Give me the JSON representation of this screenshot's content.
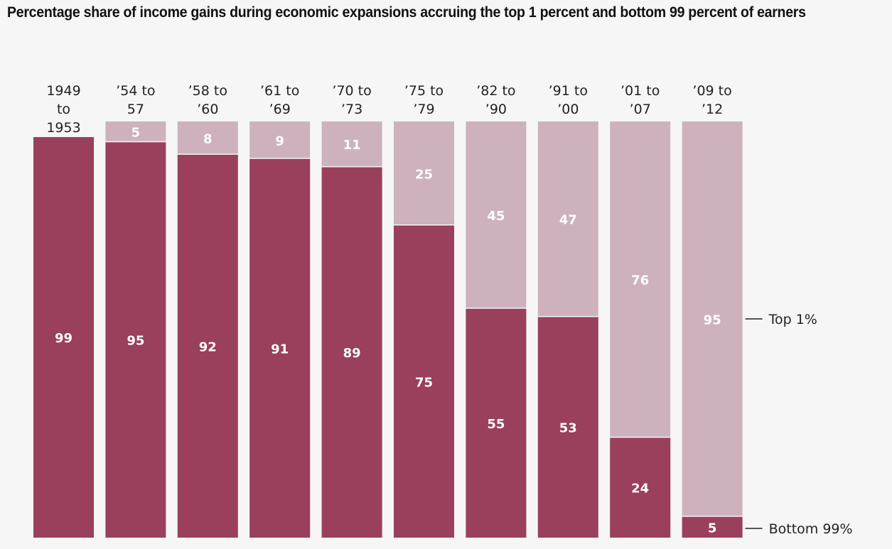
{
  "chart_data": {
    "type": "bar",
    "stacked": true,
    "title": "Percentage share of income gains during economic expansions accruing the top 1 percent and bottom 99 percent of earners",
    "xlabel": "",
    "ylabel": "",
    "ylim": [
      0,
      100
    ],
    "grid": false,
    "categories": [
      [
        "1949",
        "to",
        "1953"
      ],
      [
        "’54 to",
        "57"
      ],
      [
        "’58 to",
        "’60"
      ],
      [
        "’61 to",
        "’69"
      ],
      [
        "’70 to",
        "’73"
      ],
      [
        "’75 to",
        "’79"
      ],
      [
        "’82 to",
        "’90"
      ],
      [
        "’91 to",
        "’00"
      ],
      [
        "’01 to",
        "’07"
      ],
      [
        "’09 to",
        "’12"
      ]
    ],
    "series": [
      {
        "name": "Bottom 99%",
        "color": "#9a3f5c",
        "values": [
          99,
          95,
          92,
          91,
          89,
          75,
          55,
          53,
          24,
          5
        ]
      },
      {
        "name": "Top 1%",
        "color": "#cdb2bd",
        "values": [
          null,
          5,
          8,
          9,
          11,
          25,
          45,
          47,
          76,
          95
        ]
      }
    ],
    "legend": {
      "placement": "right",
      "entries": [
        "Top 1%",
        "Bottom 99%"
      ]
    }
  }
}
